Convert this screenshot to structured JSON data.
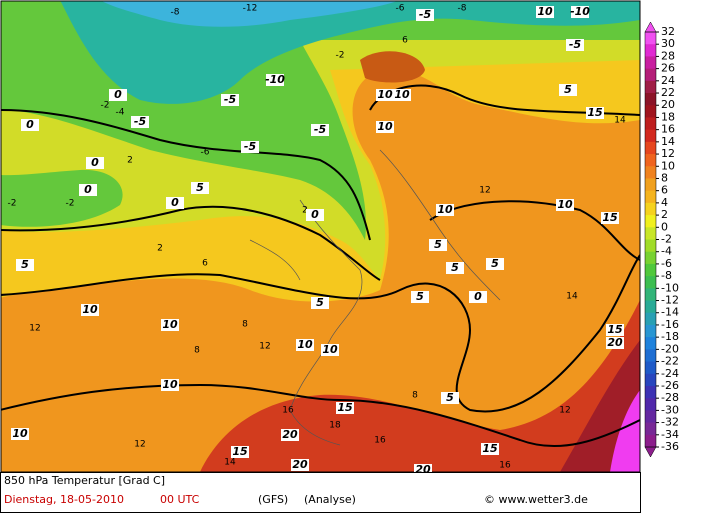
{
  "footer": {
    "title": "850 hPa Temperatur [Grad C]",
    "date": "Dienstag, 18-05-2010",
    "time": "00 UTC",
    "model": "(GFS)",
    "kind": "(Analyse)",
    "copyright": "© www.wetter3.de"
  },
  "colorbar": {
    "levels": [
      32,
      30,
      28,
      26,
      24,
      22,
      20,
      18,
      16,
      14,
      12,
      10,
      8,
      6,
      4,
      2,
      0,
      -2,
      -4,
      -6,
      -8,
      -10,
      -12,
      -14,
      -16,
      -18,
      -20,
      -22,
      -24,
      -26,
      -28,
      -30,
      -32,
      -34,
      -36
    ],
    "colors": [
      "#f050f0",
      "#e028d2",
      "#c81ea0",
      "#b41e78",
      "#a01e46",
      "#8c1428",
      "#a0141e",
      "#be1e1e",
      "#d2281e",
      "#e6461e",
      "#f0641e",
      "#f0821e",
      "#f0a01e",
      "#f5b41e",
      "#f5d21e",
      "#f0f01e",
      "#c8e628",
      "#a0dc28",
      "#78d232",
      "#50c83c",
      "#3cbe50",
      "#32b478",
      "#28aa96",
      "#28a0b4",
      "#2896d2",
      "#1e82dc",
      "#1e6ed2",
      "#1e5ac8",
      "#2846be",
      "#3c32b4",
      "#5028aa",
      "#6428a0",
      "#782896",
      "#8c1e8c"
    ]
  },
  "labels": [
    "10",
    "-10",
    "-8",
    "-12",
    "-6",
    "-5",
    "-8",
    "-5",
    "6",
    "-2",
    "-10",
    "-5",
    "10",
    "10",
    "0",
    "-2",
    "-4",
    "-5",
    "0",
    "-5",
    "10",
    "15",
    "14",
    "5",
    "-5",
    "-6",
    "2",
    "0",
    "0",
    "-2",
    "-2",
    "0",
    "5",
    "2",
    "0",
    "10",
    "10",
    "15",
    "12",
    "5",
    "2",
    "6",
    "5",
    "5",
    "5",
    "10",
    "12",
    "10",
    "8",
    "5",
    "5",
    "0",
    "14",
    "15",
    "20",
    "10",
    "10",
    "8",
    "12",
    "10",
    "5",
    "8",
    "16",
    "15",
    "20",
    "10",
    "12",
    "15",
    "14",
    "18",
    "16",
    "15",
    "20",
    "20",
    "16",
    "12"
  ]
}
